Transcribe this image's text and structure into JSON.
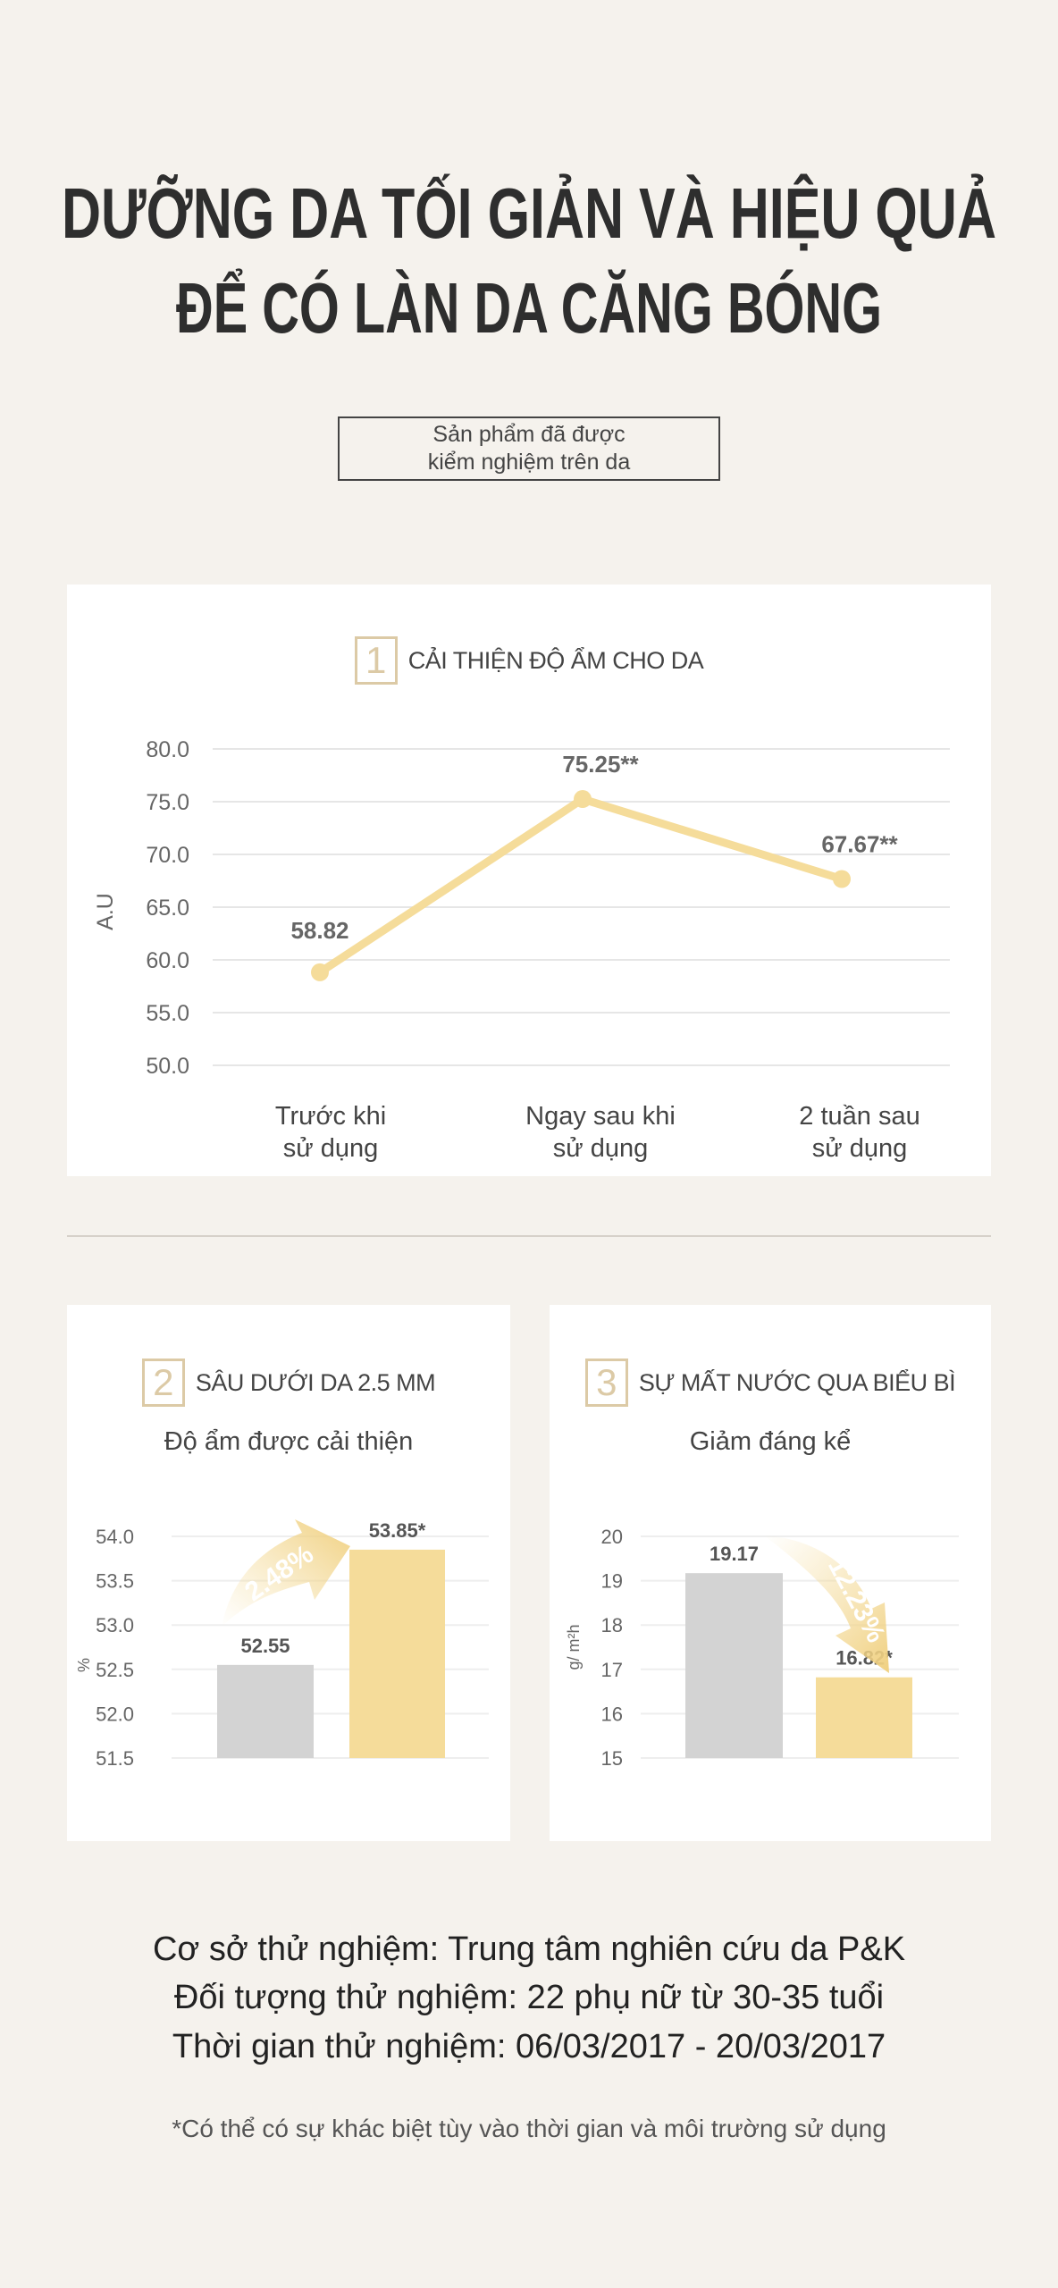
{
  "header": {
    "title_line1": "DƯỠNG DA TỐI GIẢN VÀ HIỆU QUẢ",
    "title_line2": "ĐỂ CÓ LÀN DA CĂNG BÓNG",
    "badge_line1": "Sản phẩm đã được",
    "badge_line2": "kiểm nghiệm trên da"
  },
  "colors": {
    "background": "#f5f2ed",
    "card": "#ffffff",
    "accent_yellow": "#f5dc9a",
    "bar_gray": "#d3d3d3",
    "number_box": "#dccaa6",
    "text": "#333333"
  },
  "chart_data": [
    {
      "type": "line",
      "number": "1",
      "title": "CẢI THIỆN ĐỘ ẨM CHO DA",
      "ylabel": "A.U",
      "ylim": [
        50,
        80
      ],
      "yticks": [
        "50.0",
        "55.0",
        "60.0",
        "65.0",
        "70.0",
        "75.0",
        "80.0"
      ],
      "categories": [
        [
          "Trước khi",
          "sử dụng"
        ],
        [
          "Ngay sau khi",
          "sử dụng"
        ],
        [
          "2 tuần sau",
          "sử dụng"
        ]
      ],
      "values": [
        58.82,
        75.25,
        67.67
      ],
      "data_labels": [
        "58.82",
        "75.25**",
        "67.67**"
      ],
      "grid": true
    },
    {
      "type": "bar",
      "number": "2",
      "title": "SÂU DƯỚI DA 2.5 MM",
      "subtitle": "Độ ẩm được cải thiện",
      "ylabel": "%",
      "ylim": [
        51.5,
        54.0
      ],
      "yticks": [
        "51.5",
        "52.0",
        "52.5",
        "53.0",
        "53.5",
        "54.0"
      ],
      "values": [
        52.55,
        53.85
      ],
      "data_labels": [
        "52.55",
        "53.85*"
      ],
      "bar_colors": [
        "#d3d3d3",
        "#f5dc9a"
      ],
      "annotation": "2.48%",
      "arrow": "up",
      "grid": true
    },
    {
      "type": "bar",
      "number": "3",
      "title": "SỰ MẤT NƯỚC QUA BIỂU BÌ",
      "subtitle": "Giảm đáng kể",
      "ylabel": "g/ m²h",
      "ylim": [
        15,
        20
      ],
      "yticks": [
        "15",
        "16",
        "17",
        "18",
        "19",
        "20"
      ],
      "values": [
        19.17,
        16.82
      ],
      "data_labels": [
        "19.17",
        "16.82*"
      ],
      "bar_colors": [
        "#d3d3d3",
        "#f5dc9a"
      ],
      "annotation": "12.23%",
      "arrow": "down",
      "grid": true
    }
  ],
  "footer": {
    "line1": "Cơ sở thử nghiệm: Trung tâm nghiên cứu da P&K",
    "line2": "Đối tượng thử nghiệm: 22 phụ nữ từ 30-35 tuổi",
    "line3": "Thời gian thử nghiệm: 06/03/2017 - 20/03/2017",
    "note": "*Có thể có sự khác biệt tùy vào thời gian và môi trường sử dụng"
  }
}
